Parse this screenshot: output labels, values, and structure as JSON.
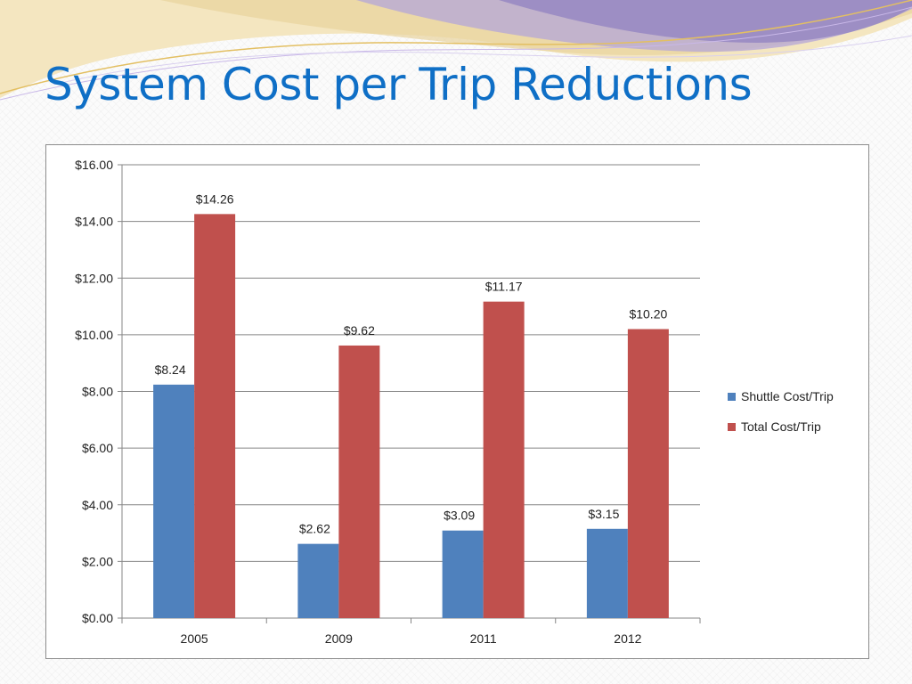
{
  "slide": {
    "title": "System Cost per Trip Reductions"
  },
  "colors": {
    "title": "#0f6fc6",
    "shuttle": "#4f81bd",
    "total": "#c0504d",
    "swoosh_purple": "#9b8ec4",
    "swoosh_gold": "#e8c97a"
  },
  "chart_data": {
    "type": "bar",
    "title": "",
    "xlabel": "",
    "ylabel": "",
    "categories": [
      "2005",
      "2009",
      "2011",
      "2012"
    ],
    "series": [
      {
        "name": "Shuttle Cost/Trip",
        "values": [
          8.24,
          2.62,
          3.09,
          3.15
        ],
        "labels": [
          "$8.24",
          "$2.62",
          "$3.09",
          "$3.15"
        ]
      },
      {
        "name": "Total Cost/Trip",
        "values": [
          14.26,
          9.62,
          11.17,
          10.2
        ],
        "labels": [
          "$14.26",
          "$9.62",
          "$11.17",
          "$10.20"
        ]
      }
    ],
    "ylim": [
      0,
      16
    ],
    "yticks": [
      0,
      2,
      4,
      6,
      8,
      10,
      12,
      14,
      16
    ],
    "ytick_labels": [
      "$0.00",
      "$2.00",
      "$4.00",
      "$6.00",
      "$8.00",
      "$10.00",
      "$12.00",
      "$14.00",
      "$16.00"
    ],
    "grid": true,
    "legend_position": "right"
  }
}
